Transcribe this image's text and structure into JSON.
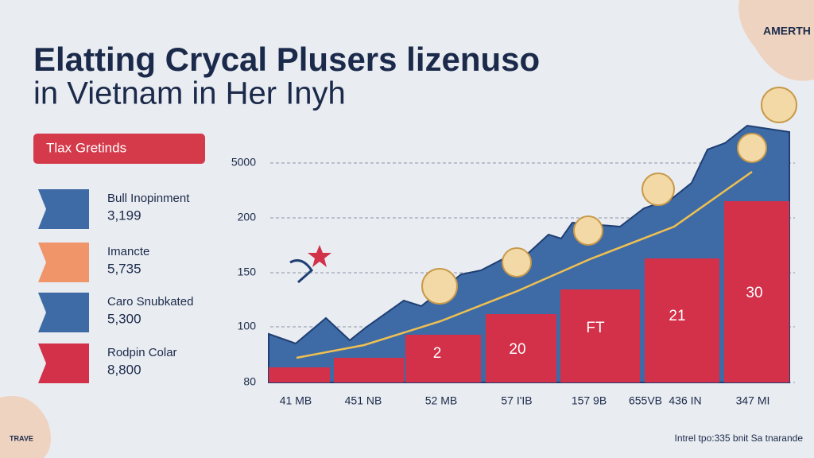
{
  "header": {
    "title_line1": "Elatting Crycal Plusers lizenuso",
    "title_line2": "in Vietnam in Her Inyh",
    "logo": "AMERTH"
  },
  "badge": "Tlax Gretinds",
  "legend": [
    {
      "label": "Bull Inopinment",
      "value": "3,199"
    },
    {
      "label": "Imancte",
      "value": "5,735"
    },
    {
      "label": "Caro Snubkated",
      "value": "5,300"
    },
    {
      "label": "Rodpin Colar",
      "value": "8,800"
    }
  ],
  "chart": {
    "y_labels": [
      "5000",
      "200",
      "150",
      "100",
      "80"
    ],
    "x_labels": [
      "41 MB",
      "451 NB",
      "52 MB",
      "57 I'IB",
      "157 9B",
      "655VB",
      "436 IN",
      "347 MI"
    ],
    "bar_labels": [
      "2",
      "20",
      "FT",
      "21",
      "30"
    ]
  },
  "footer": "Intrel tpo:335 bnit Sa tnarande",
  "corner_logo": "TRAVE"
}
